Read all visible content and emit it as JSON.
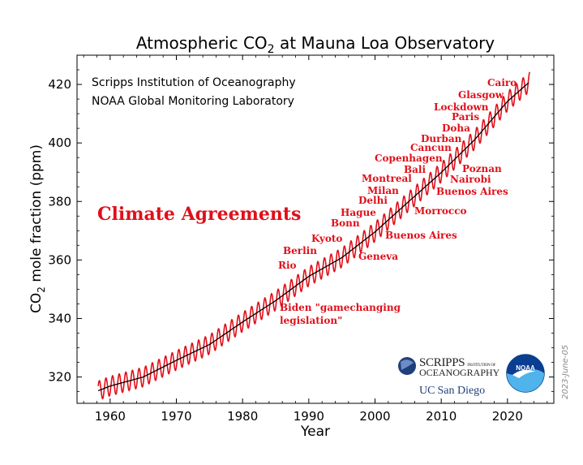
{
  "chart_data": {
    "type": "line",
    "title_main": "Atmospheric CO",
    "title_sub": "2",
    "title_tail": " at Mauna Loa Observatory",
    "xlabel": "Year",
    "ylabel_main": "CO",
    "ylabel_sub": "2",
    "ylabel_tail": " mole fraction (ppm)",
    "xlim": [
      1955,
      2027
    ],
    "ylim": [
      311,
      430
    ],
    "x_ticks": [
      1960,
      1970,
      1980,
      1990,
      2000,
      2010,
      2020
    ],
    "y_ticks": [
      320,
      340,
      360,
      380,
      400,
      420
    ],
    "x_tick_labels": [
      "1960",
      "1970",
      "1980",
      "1990",
      "2000",
      "2010",
      "2020"
    ],
    "y_tick_labels": [
      "320",
      "340",
      "360",
      "380",
      "400",
      "420"
    ],
    "series": [
      {
        "color": "#e0101a",
        "style": "monthly seasonal cycle",
        "seasonal_amplitude_ppm": 3.3,
        "x": [
          1958.2,
          1960,
          1965,
          1970,
          1975,
          1980,
          1985,
          1990,
          1995,
          2000,
          2005,
          2010,
          2015,
          2020,
          2023.4
        ],
        "values": [
          315.3,
          316.9,
          320.0,
          325.7,
          331.1,
          338.8,
          346.1,
          354.4,
          360.8,
          369.6,
          379.8,
          389.9,
          401.0,
          414.2,
          421.0
        ]
      },
      {
        "color": "#000000",
        "style": "deseasonalized trend",
        "x": [
          1958.2,
          1960,
          1965,
          1970,
          1975,
          1980,
          1985,
          1990,
          1995,
          2000,
          2005,
          2010,
          2015,
          2020,
          2023.4
        ],
        "values": [
          315.3,
          316.9,
          320.0,
          325.7,
          331.1,
          338.8,
          346.1,
          354.4,
          360.8,
          369.6,
          379.8,
          389.9,
          401.0,
          414.2,
          421.0
        ]
      }
    ],
    "sources": [
      "Scripps Institution of Oceanography",
      "NOAA Global Monitoring Laboratory"
    ],
    "agreements_title": "Climate Agreements",
    "agreements": [
      {
        "label": "Rio",
        "year": 1992
      },
      {
        "label": "Berlin",
        "year": 1995
      },
      {
        "label": "Kyoto",
        "year": 1997
      },
      {
        "label": "Bonn",
        "year": 2001
      },
      {
        "label": "Hague",
        "year": 2000
      },
      {
        "label": "Geneva",
        "year": 1996
      },
      {
        "label": "Delhi",
        "year": 2002
      },
      {
        "label": "Milan",
        "year": 2003
      },
      {
        "label": "Buenos Aires",
        "year": 2004
      },
      {
        "label": "Montreal",
        "year": 2005
      },
      {
        "label": "Morrocco",
        "year": 2001
      },
      {
        "label": "Bali",
        "year": 2007
      },
      {
        "label": "Copenhagen",
        "year": 2009
      },
      {
        "label": "Cancun",
        "year": 2010
      },
      {
        "label": "Durban",
        "year": 2011
      },
      {
        "label": "Doha",
        "year": 2012
      },
      {
        "label": "Buenos Aires",
        "year": 1998
      },
      {
        "label": "Nairobi",
        "year": 2006
      },
      {
        "label": "Poznan",
        "year": 2008
      },
      {
        "label": "Paris",
        "year": 2015
      },
      {
        "label": "Lockdown",
        "year": 2020
      },
      {
        "label": "Glasgow",
        "year": 2021
      },
      {
        "label": "Cairo",
        "year": 2022
      },
      {
        "label": "Biden \"gamechanging",
        "year": 2022
      },
      {
        "label": "legislation\"",
        "year": 2022
      }
    ],
    "grid": false,
    "legend": "none"
  },
  "logos": {
    "scripps_line1": "SCRIPPS",
    "scripps_small": "INSTITUTION OF",
    "scripps_line2": "OCEANOGRAPHY",
    "ucsd_a": "UC",
    "ucsd_b": "San Diego",
    "noaa": "NOAA"
  },
  "date_stamp": "2023-June-05"
}
